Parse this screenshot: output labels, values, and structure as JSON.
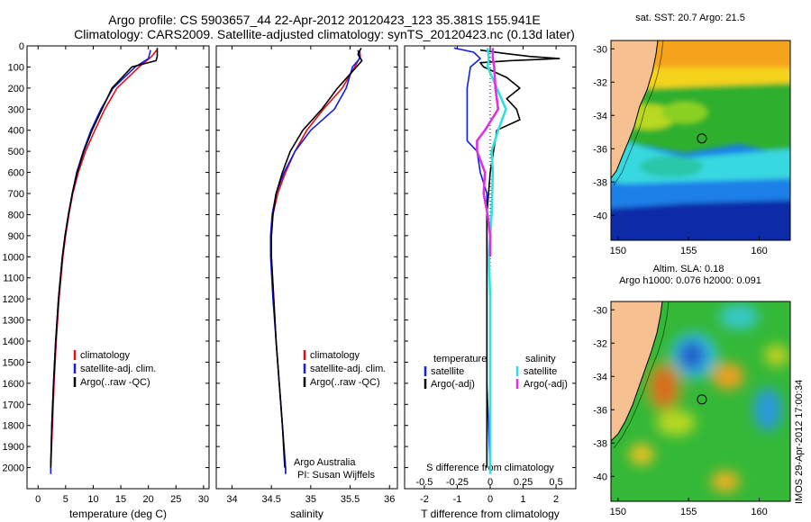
{
  "header": {
    "line1": "Argo profile: CS 5903657_44 22-Apr-2012 20120423_123 35.381S 155.941E",
    "line2": "Climatology: CARS2009. Satellite-adjusted climatology: synTS_20120423.nc (0.13d later)"
  },
  "colors": {
    "climatology": "#e0101a",
    "satellite": "#1020e0",
    "argo": "#000000",
    "satellite_salinity": "#30e0e0",
    "argo_salinity": "#e030e0",
    "land": "#f6c090",
    "coast": "#2e8b2e"
  },
  "footer": {
    "imos_stamp": "IMOS 29-Apr-2012 17:00:34",
    "argo_credit": "Argo Australia",
    "pi_credit": "PI: Susan Wijffels"
  },
  "chart_data": [
    {
      "type": "line",
      "name": "temperature",
      "xlabel": "temperature (deg C)",
      "ylabel": "",
      "xlim": [
        -2,
        31
      ],
      "ylim": [
        2100,
        0
      ],
      "xticks": [
        0,
        5,
        10,
        15,
        20,
        25,
        30
      ],
      "yticks": [
        0,
        100,
        200,
        300,
        400,
        500,
        600,
        700,
        800,
        900,
        1000,
        1100,
        1200,
        1300,
        1400,
        1500,
        1600,
        1700,
        1800,
        1900,
        2000
      ],
      "legend": [
        "climatology",
        "satellite-adj. clim.",
        "Argo(..raw -QC)"
      ],
      "series": [
        {
          "name": "climatology",
          "color_key": "climatology",
          "depth": [
            20,
            50,
            100,
            200,
            300,
            400,
            500,
            600,
            700,
            800,
            900,
            1000,
            1200,
            1400,
            1600,
            1800,
            2000,
            2030
          ],
          "values": [
            21.5,
            20.6,
            18.3,
            14.3,
            12.1,
            10.3,
            8.6,
            7.3,
            6.3,
            5.6,
            5.0,
            4.5,
            3.8,
            3.3,
            2.9,
            2.6,
            2.3,
            2.3
          ]
        },
        {
          "name": "satellite-adj. clim.",
          "color_key": "satellite",
          "depth": [
            20,
            60,
            100,
            200,
            300,
            400,
            500,
            600,
            700,
            800,
            900,
            1000,
            1200,
            1400,
            1600,
            1800,
            2000,
            2030
          ],
          "values": [
            20.4,
            20.0,
            17.6,
            13.6,
            11.4,
            9.6,
            8.2,
            7.0,
            6.2,
            5.5,
            4.9,
            4.4,
            3.7,
            3.2,
            2.8,
            2.5,
            2.3,
            2.3
          ]
        },
        {
          "name": "Argo(..raw -QC)",
          "color_key": "argo",
          "depth": [
            10,
            50,
            70,
            100,
            200,
            300,
            400,
            500,
            600,
            700,
            800,
            900,
            1000,
            1200,
            1400,
            1600,
            1800,
            2000
          ],
          "values": [
            21.6,
            21.6,
            21.4,
            17.0,
            13.4,
            11.6,
            9.8,
            8.3,
            7.1,
            6.2,
            5.5,
            4.9,
            4.4,
            3.7,
            3.2,
            2.8,
            2.5,
            2.3
          ]
        }
      ]
    },
    {
      "type": "line",
      "name": "salinity",
      "xlabel": "salinity",
      "ylabel": "",
      "xlim": [
        33.8,
        36.1
      ],
      "ylim": [
        2100,
        0
      ],
      "xticks": [
        34,
        34.5,
        35,
        35.5,
        36
      ],
      "yticks": [
        0,
        100,
        200,
        300,
        400,
        500,
        600,
        700,
        800,
        900,
        1000,
        1100,
        1200,
        1300,
        1400,
        1500,
        1600,
        1700,
        1800,
        1900,
        2000
      ],
      "legend": [
        "climatology",
        "satellite-adj. clim.",
        "Argo(..raw -QC)"
      ],
      "series": [
        {
          "name": "climatology",
          "color_key": "climatology",
          "depth": [
            20,
            50,
            100,
            200,
            300,
            400,
            500,
            600,
            700,
            800,
            900,
            1000,
            1200,
            1400,
            1600,
            1800,
            2000,
            2030
          ],
          "values": [
            35.62,
            35.63,
            35.56,
            35.4,
            35.16,
            34.95,
            34.8,
            34.68,
            34.58,
            34.52,
            34.5,
            34.5,
            34.53,
            34.56,
            34.6,
            34.64,
            34.68,
            34.68
          ]
        },
        {
          "name": "satellite-adj. clim.",
          "color_key": "satellite",
          "depth": [
            20,
            60,
            100,
            200,
            300,
            400,
            500,
            600,
            700,
            800,
            900,
            1000,
            1200,
            1400,
            1600,
            1800,
            2000,
            2030
          ],
          "values": [
            35.6,
            35.62,
            35.53,
            35.45,
            35.3,
            35.0,
            34.8,
            34.66,
            34.56,
            34.51,
            34.49,
            34.49,
            34.52,
            34.56,
            34.6,
            34.64,
            34.68,
            34.68
          ]
        },
        {
          "name": "Argo(..raw -QC)",
          "color_key": "argo",
          "depth": [
            10,
            40,
            70,
            100,
            200,
            300,
            400,
            500,
            600,
            700,
            800,
            900,
            1000,
            1200,
            1400,
            1600,
            1800,
            2000
          ],
          "values": [
            35.64,
            35.6,
            35.65,
            35.58,
            35.34,
            35.14,
            34.9,
            34.74,
            34.64,
            34.56,
            34.52,
            34.5,
            34.5,
            34.53,
            34.56,
            34.6,
            34.64,
            34.67
          ]
        }
      ]
    },
    {
      "type": "line",
      "name": "differences",
      "xlabel": "T difference from climatology",
      "x2label": "S difference from climatology",
      "xlim": [
        -2.6,
        2.6
      ],
      "ylim": [
        2100,
        0
      ],
      "xticks": [
        -2,
        -1,
        0,
        1,
        2
      ],
      "xtick_labels": [
        "-2",
        "-1",
        "0",
        "1",
        "2"
      ],
      "x2ticks": [
        -0.5,
        -0.25,
        0,
        0.25,
        0.5
      ],
      "x2tick_labels": [
        "-0.5",
        "-0.25",
        "0",
        "0.25",
        "0.5"
      ],
      "yticks": [
        0,
        100,
        200,
        300,
        400,
        500,
        600,
        700,
        800,
        900,
        1000,
        1100,
        1200,
        1300,
        1400,
        1500,
        1600,
        1700,
        1800,
        1900,
        2000
      ],
      "legend_temperature_title": "temperature",
      "legend_salinity_title": "salinity",
      "legend_temperature": [
        "satellite",
        "Argo(-adj)"
      ],
      "legend_salinity": [
        "satellite",
        "Argo(-adj)"
      ],
      "series": [
        {
          "name": "T satellite",
          "color_key": "satellite",
          "depth": [
            10,
            30,
            60,
            100,
            200,
            300,
            400,
            450,
            500,
            600,
            700,
            800,
            900,
            1000,
            1200,
            1400,
            1600,
            1800,
            2030
          ],
          "values": [
            -1.1,
            -0.5,
            -0.3,
            -0.6,
            -0.7,
            -0.7,
            -0.7,
            -0.7,
            -0.4,
            -0.3,
            -0.1,
            -0.1,
            -0.1,
            -0.1,
            -0.1,
            -0.1,
            -0.1,
            -0.05,
            0.0
          ]
        },
        {
          "name": "T Argo(-adj)",
          "color_key": "argo",
          "depth": [
            20,
            35,
            50,
            60,
            70,
            80,
            100,
            150,
            200,
            250,
            300,
            350,
            400,
            500,
            600,
            800,
            1000,
            1400,
            1800,
            2000
          ],
          "values": [
            -0.3,
            0.4,
            1.2,
            2.1,
            0.6,
            -0.3,
            -0.2,
            0.5,
            0.9,
            0.5,
            0.8,
            0.9,
            0.2,
            0.1,
            0.0,
            -0.1,
            -0.1,
            -0.1,
            -0.1,
            -0.1
          ]
        },
        {
          "name": "S satellite",
          "color_key": "satellite_salinity",
          "depth": [
            10,
            60,
            100,
            200,
            300,
            400,
            500,
            600,
            800,
            1000,
            1200,
            1500,
            1800,
            2030
          ],
          "values": [
            -0.02,
            -0.01,
            -0.02,
            0.05,
            0.12,
            0.06,
            0.01,
            0.02,
            0.01,
            -0.01,
            0.0,
            0.0,
            0.0,
            0.0
          ]
        },
        {
          "name": "S Argo(-adj)",
          "color_key": "argo_salinity",
          "depth": [
            10,
            60,
            100,
            200,
            300,
            400,
            450,
            500,
            600,
            700,
            800,
            900,
            1000
          ],
          "values": [
            0.02,
            0.02,
            0.03,
            0.04,
            0.06,
            -0.04,
            -0.1,
            -0.1,
            -0.04,
            -0.05,
            -0.02,
            0.0,
            0.0
          ]
        }
      ]
    },
    {
      "type": "heatmap",
      "name": "sst-map",
      "title": "sat. SST: 20.7  Argo: 21.5",
      "xticks": [
        150,
        155,
        160
      ],
      "yticks": [
        -30,
        -32,
        -34,
        -36,
        -38,
        -40
      ],
      "xlim": [
        149.5,
        162.2
      ],
      "ylim": [
        -41.5,
        -29.5
      ],
      "marker": {
        "lon": 155.941,
        "lat": -35.381
      },
      "colorscale": "SST (warm orange north, cold dark blue south)"
    },
    {
      "type": "heatmap",
      "name": "sla-map",
      "title_line1": "Altim. SLA: 0.18",
      "title_line2": "Argo h1000: 0.076 h2000: 0.091",
      "xticks": [
        150,
        155,
        160
      ],
      "yticks": [
        -30,
        -32,
        -34,
        -36,
        -38,
        -40
      ],
      "xlim": [
        149.5,
        162.2
      ],
      "ylim": [
        -41.5,
        -29.5
      ],
      "marker": {
        "lon": 155.941,
        "lat": -35.381
      },
      "colorscale": "sea level anomaly (green background, blue lows, red highs)"
    }
  ]
}
